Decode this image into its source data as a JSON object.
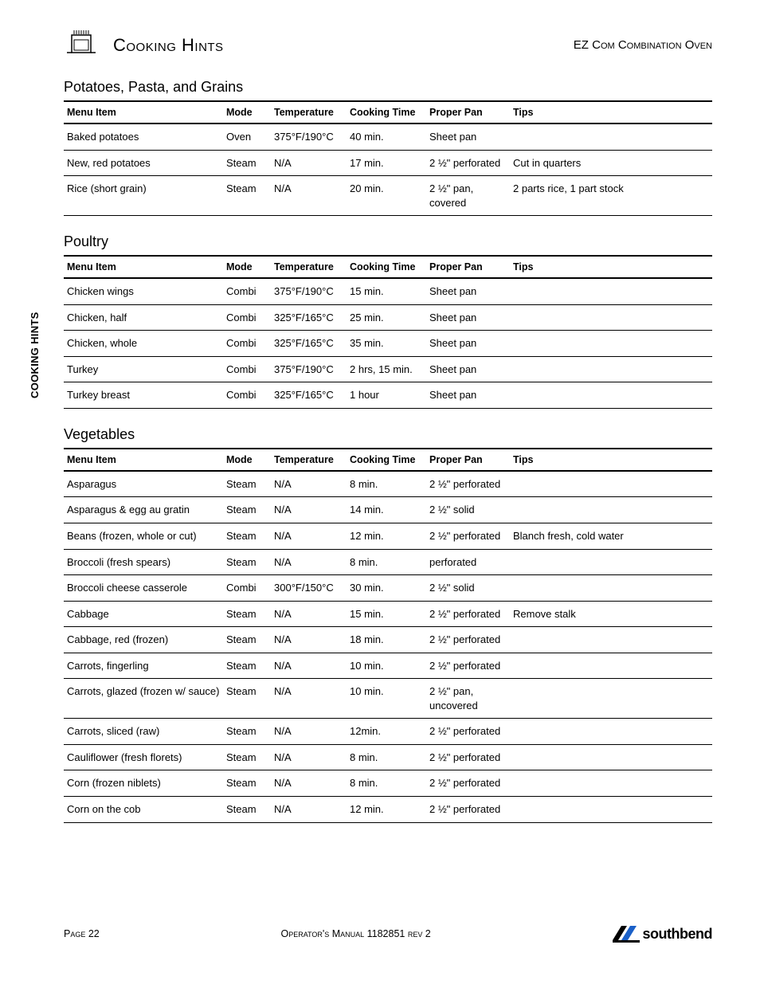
{
  "side_tab": "COOKING HINTS",
  "header": {
    "title": "Cooking Hints",
    "subtitle": "EZ Com Combination Oven"
  },
  "columns": [
    "Menu Item",
    "Mode",
    "Temperature",
    "Cooking Time",
    "Proper Pan",
    "Tips"
  ],
  "sections": [
    {
      "title": "Potatoes, Pasta, and Grains",
      "rows": [
        [
          "Baked potatoes",
          "Oven",
          "375°F/190°C",
          "40 min.",
          "Sheet pan",
          ""
        ],
        [
          "New, red potatoes",
          "Steam",
          "N/A",
          "17 min.",
          "2 ½\" perforated",
          "Cut in quarters"
        ],
        [
          "Rice (short grain)",
          "Steam",
          "N/A",
          "20 min.",
          "2 ½\" pan, covered",
          "2 parts rice, 1 part stock"
        ]
      ]
    },
    {
      "title": "Poultry",
      "rows": [
        [
          "Chicken wings",
          "Combi",
          "375°F/190°C",
          "15 min.",
          "Sheet pan",
          ""
        ],
        [
          "Chicken, half",
          "Combi",
          "325°F/165°C",
          "25 min.",
          "Sheet pan",
          ""
        ],
        [
          "Chicken, whole",
          "Combi",
          "325°F/165°C",
          "35 min.",
          "Sheet pan",
          ""
        ],
        [
          "Turkey",
          "Combi",
          "375°F/190°C",
          "2 hrs, 15 min.",
          "Sheet pan",
          ""
        ],
        [
          "Turkey breast",
          "Combi",
          "325°F/165°C",
          "1 hour",
          "Sheet pan",
          ""
        ]
      ]
    },
    {
      "title": "Vegetables",
      "rows": [
        [
          "Asparagus",
          "Steam",
          "N/A",
          "8 min.",
          "2 ½\" perforated",
          ""
        ],
        [
          "Asparagus & egg au gratin",
          "Steam",
          "N/A",
          "14 min.",
          "2 ½\" solid",
          ""
        ],
        [
          "Beans (frozen, whole or cut)",
          "Steam",
          "N/A",
          "12 min.",
          "2 ½\" perforated",
          "Blanch fresh, cold water"
        ],
        [
          "Broccoli (fresh spears)",
          "Steam",
          "N/A",
          "8 min.",
          "perforated",
          ""
        ],
        [
          "Broccoli cheese casserole",
          "Combi",
          "300°F/150°C",
          "30 min.",
          "2 ½\" solid",
          ""
        ],
        [
          "Cabbage",
          "Steam",
          "N/A",
          "15 min.",
          "2 ½\" perforated",
          "Remove stalk"
        ],
        [
          "Cabbage, red (frozen)",
          "Steam",
          "N/A",
          "18 min.",
          "2 ½\" perforated",
          ""
        ],
        [
          "Carrots, fingerling",
          "Steam",
          "N/A",
          "10 min.",
          "2 ½\" perforated",
          ""
        ],
        [
          "Carrots, glazed (frozen w/ sauce)",
          "Steam",
          "N/A",
          "10 min.",
          "2 ½\" pan, uncovered",
          ""
        ],
        [
          "Carrots, sliced (raw)",
          "Steam",
          "N/A",
          "12min.",
          "2 ½\" perforated",
          ""
        ],
        [
          "Cauliflower (fresh florets)",
          "Steam",
          "N/A",
          "8 min.",
          "2 ½\" perforated",
          ""
        ],
        [
          "Corn (frozen niblets)",
          "Steam",
          "N/A",
          "8 min.",
          "2 ½\" perforated",
          ""
        ],
        [
          "Corn on the cob",
          "Steam",
          "N/A",
          "12 min.",
          "2 ½\" perforated",
          ""
        ]
      ]
    }
  ],
  "footer": {
    "page": "Page 22",
    "manual": "Operator's Manual 1182851 rev 2",
    "brand": "southbend"
  },
  "colors": {
    "text": "#000000",
    "rule_heavy": "#000000",
    "rule_light": "#000000",
    "logo_accent": "#1a60c8"
  }
}
